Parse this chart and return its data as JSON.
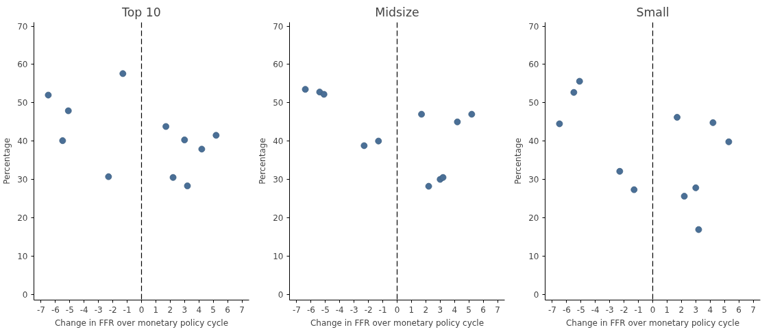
{
  "chart_data": [
    {
      "type": "scatter",
      "title": "Top 10",
      "xlabel": "Change in FFR over monetary policy cycle",
      "ylabel": "Percentage",
      "xlim": [
        -7.5,
        7.5
      ],
      "ylim": [
        -1.5,
        71
      ],
      "xticks": [
        -7,
        -6,
        -5,
        -4,
        -3,
        -2,
        -1,
        0,
        1,
        2,
        3,
        4,
        5,
        6,
        7
      ],
      "yticks": [
        0,
        10,
        20,
        30,
        40,
        50,
        60,
        70
      ],
      "grid": false,
      "marker": "circle",
      "x": [
        -6.5,
        -5.5,
        -5.1,
        -2.3,
        -1.3,
        1.7,
        2.2,
        3.0,
        3.2,
        4.2,
        5.2
      ],
      "series": [
        {
          "color": "#4a6f96",
          "values": [
            52,
            40.1,
            47.9,
            30.7,
            57.6,
            43.8,
            30.5,
            40.3,
            28.3,
            37.9,
            41.5
          ]
        }
      ],
      "ref_lines": [
        {
          "axis": "x",
          "value": 0,
          "color": "#000000",
          "line_style": "dashed"
        }
      ]
    },
    {
      "type": "scatter",
      "title": "Midsize",
      "xlabel": "Change in FFR over monetary policy cycle",
      "ylabel": "Percentage",
      "xlim": [
        -7.5,
        7.5
      ],
      "ylim": [
        -1.5,
        71
      ],
      "xticks": [
        -7,
        -6,
        -5,
        -4,
        -3,
        -2,
        -1,
        0,
        1,
        2,
        3,
        4,
        5,
        6,
        7
      ],
      "yticks": [
        0,
        10,
        20,
        30,
        40,
        50,
        60,
        70
      ],
      "grid": false,
      "marker": "circle",
      "x": [
        -6.4,
        -5.4,
        -5.1,
        -2.3,
        -1.3,
        1.7,
        2.2,
        3.0,
        3.2,
        4.2,
        5.2
      ],
      "series": [
        {
          "color": "#4a6f96",
          "values": [
            53.5,
            52.8,
            52.2,
            38.8,
            40.0,
            47.0,
            28.2,
            30.0,
            30.5,
            45.0,
            47.0
          ]
        }
      ],
      "ref_lines": [
        {
          "axis": "x",
          "value": 0,
          "color": "#000000",
          "line_style": "dashed"
        }
      ]
    },
    {
      "type": "scatter",
      "title": "Small",
      "xlabel": "Change in FFR over monetary policy cycle",
      "ylabel": "Percentage",
      "xlim": [
        -7.5,
        7.5
      ],
      "ylim": [
        -1.5,
        71
      ],
      "xticks": [
        -7,
        -6,
        -5,
        -4,
        -3,
        -2,
        -1,
        0,
        1,
        2,
        3,
        4,
        5,
        6,
        7
      ],
      "yticks": [
        0,
        10,
        20,
        30,
        40,
        50,
        60,
        70
      ],
      "grid": false,
      "marker": "circle",
      "x": [
        -6.5,
        -5.5,
        -5.1,
        -2.3,
        -1.3,
        1.7,
        2.2,
        3.0,
        3.2,
        4.2,
        5.3
      ],
      "series": [
        {
          "color": "#4a6f96",
          "values": [
            44.5,
            52.7,
            55.6,
            32.1,
            27.3,
            46.2,
            25.6,
            27.8,
            16.9,
            44.8,
            39.8
          ]
        }
      ],
      "ref_lines": [
        {
          "axis": "x",
          "value": 0,
          "color": "#000000",
          "line_style": "dashed"
        }
      ]
    }
  ]
}
